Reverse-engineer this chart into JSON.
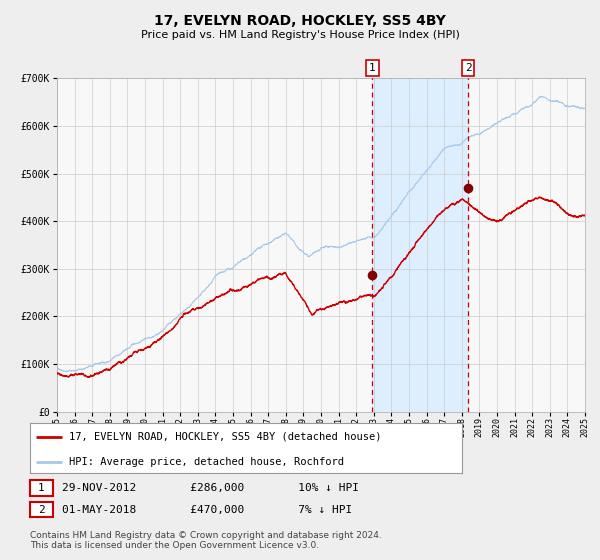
{
  "title": "17, EVELYN ROAD, HOCKLEY, SS5 4BY",
  "subtitle": "Price paid vs. HM Land Registry's House Price Index (HPI)",
  "ylim": [
    0,
    700000
  ],
  "yticks": [
    0,
    100000,
    200000,
    300000,
    400000,
    500000,
    600000,
    700000
  ],
  "ytick_labels": [
    "£0",
    "£100K",
    "£200K",
    "£300K",
    "£400K",
    "£500K",
    "£600K",
    "£700K"
  ],
  "x_start_year": 1995,
  "x_end_year": 2025,
  "hpi_color": "#a8c8e8",
  "price_color": "#cc0000",
  "marker_color": "#800000",
  "sale1_date": 2012.92,
  "sale1_price": 286000,
  "sale2_date": 2018.37,
  "sale2_price": 470000,
  "shade_color": "#ddeeff",
  "bg_color": "#f8f8f8",
  "grid_color": "#cccccc",
  "legend_line1": "17, EVELYN ROAD, HOCKLEY, SS5 4BY (detached house)",
  "legend_line2": "HPI: Average price, detached house, Rochford",
  "annotation1_date": "29-NOV-2012",
  "annotation1_price": "£286,000",
  "annotation1_hpi": "10% ↓ HPI",
  "annotation2_date": "01-MAY-2018",
  "annotation2_price": "£470,000",
  "annotation2_hpi": "7% ↓ HPI",
  "footer": "Contains HM Land Registry data © Crown copyright and database right 2024.\nThis data is licensed under the Open Government Licence v3.0."
}
